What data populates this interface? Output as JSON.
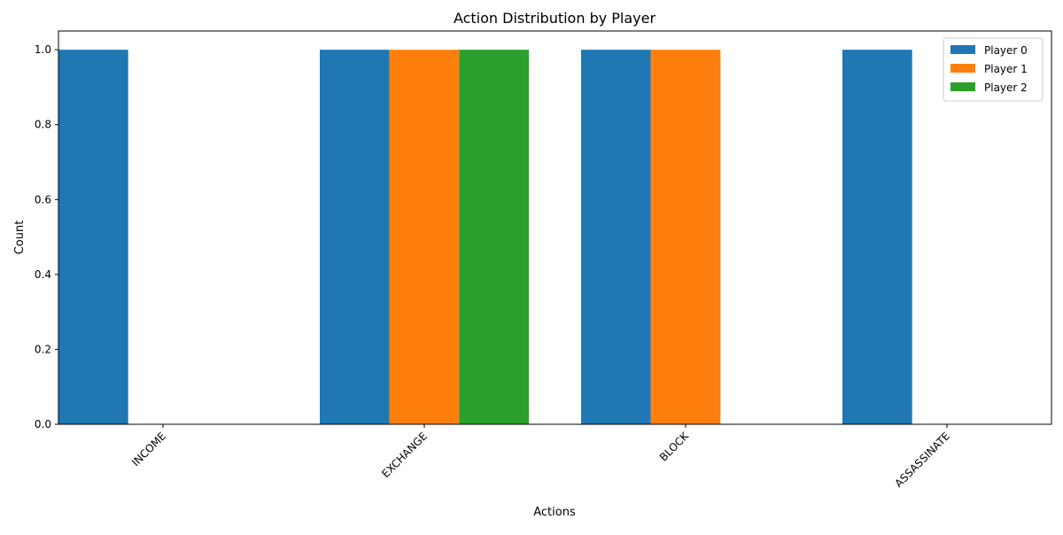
{
  "chart_data": {
    "type": "bar",
    "title": "Action Distribution by Player",
    "xlabel": "Actions",
    "ylabel": "Count",
    "categories": [
      "INCOME",
      "EXCHANGE",
      "BLOCK",
      "ASSASSINATE"
    ],
    "series": [
      {
        "name": "Player 0",
        "color": "#1f77b4",
        "values": [
          1,
          1,
          1,
          1
        ]
      },
      {
        "name": "Player 1",
        "color": "#ff7f0e",
        "values": [
          0,
          1,
          1,
          0
        ]
      },
      {
        "name": "Player 2",
        "color": "#2ca02c",
        "values": [
          0,
          1,
          0,
          0
        ]
      }
    ],
    "ylim": [
      0,
      1.05
    ],
    "yticks": [
      "0.0",
      "0.2",
      "0.4",
      "0.6",
      "0.8",
      "1.0"
    ],
    "ytick_values": [
      0,
      0.2,
      0.4,
      0.6,
      0.8,
      1.0
    ],
    "xtick_rotation_deg": 45,
    "grid": false,
    "legend_position": "top-right"
  }
}
